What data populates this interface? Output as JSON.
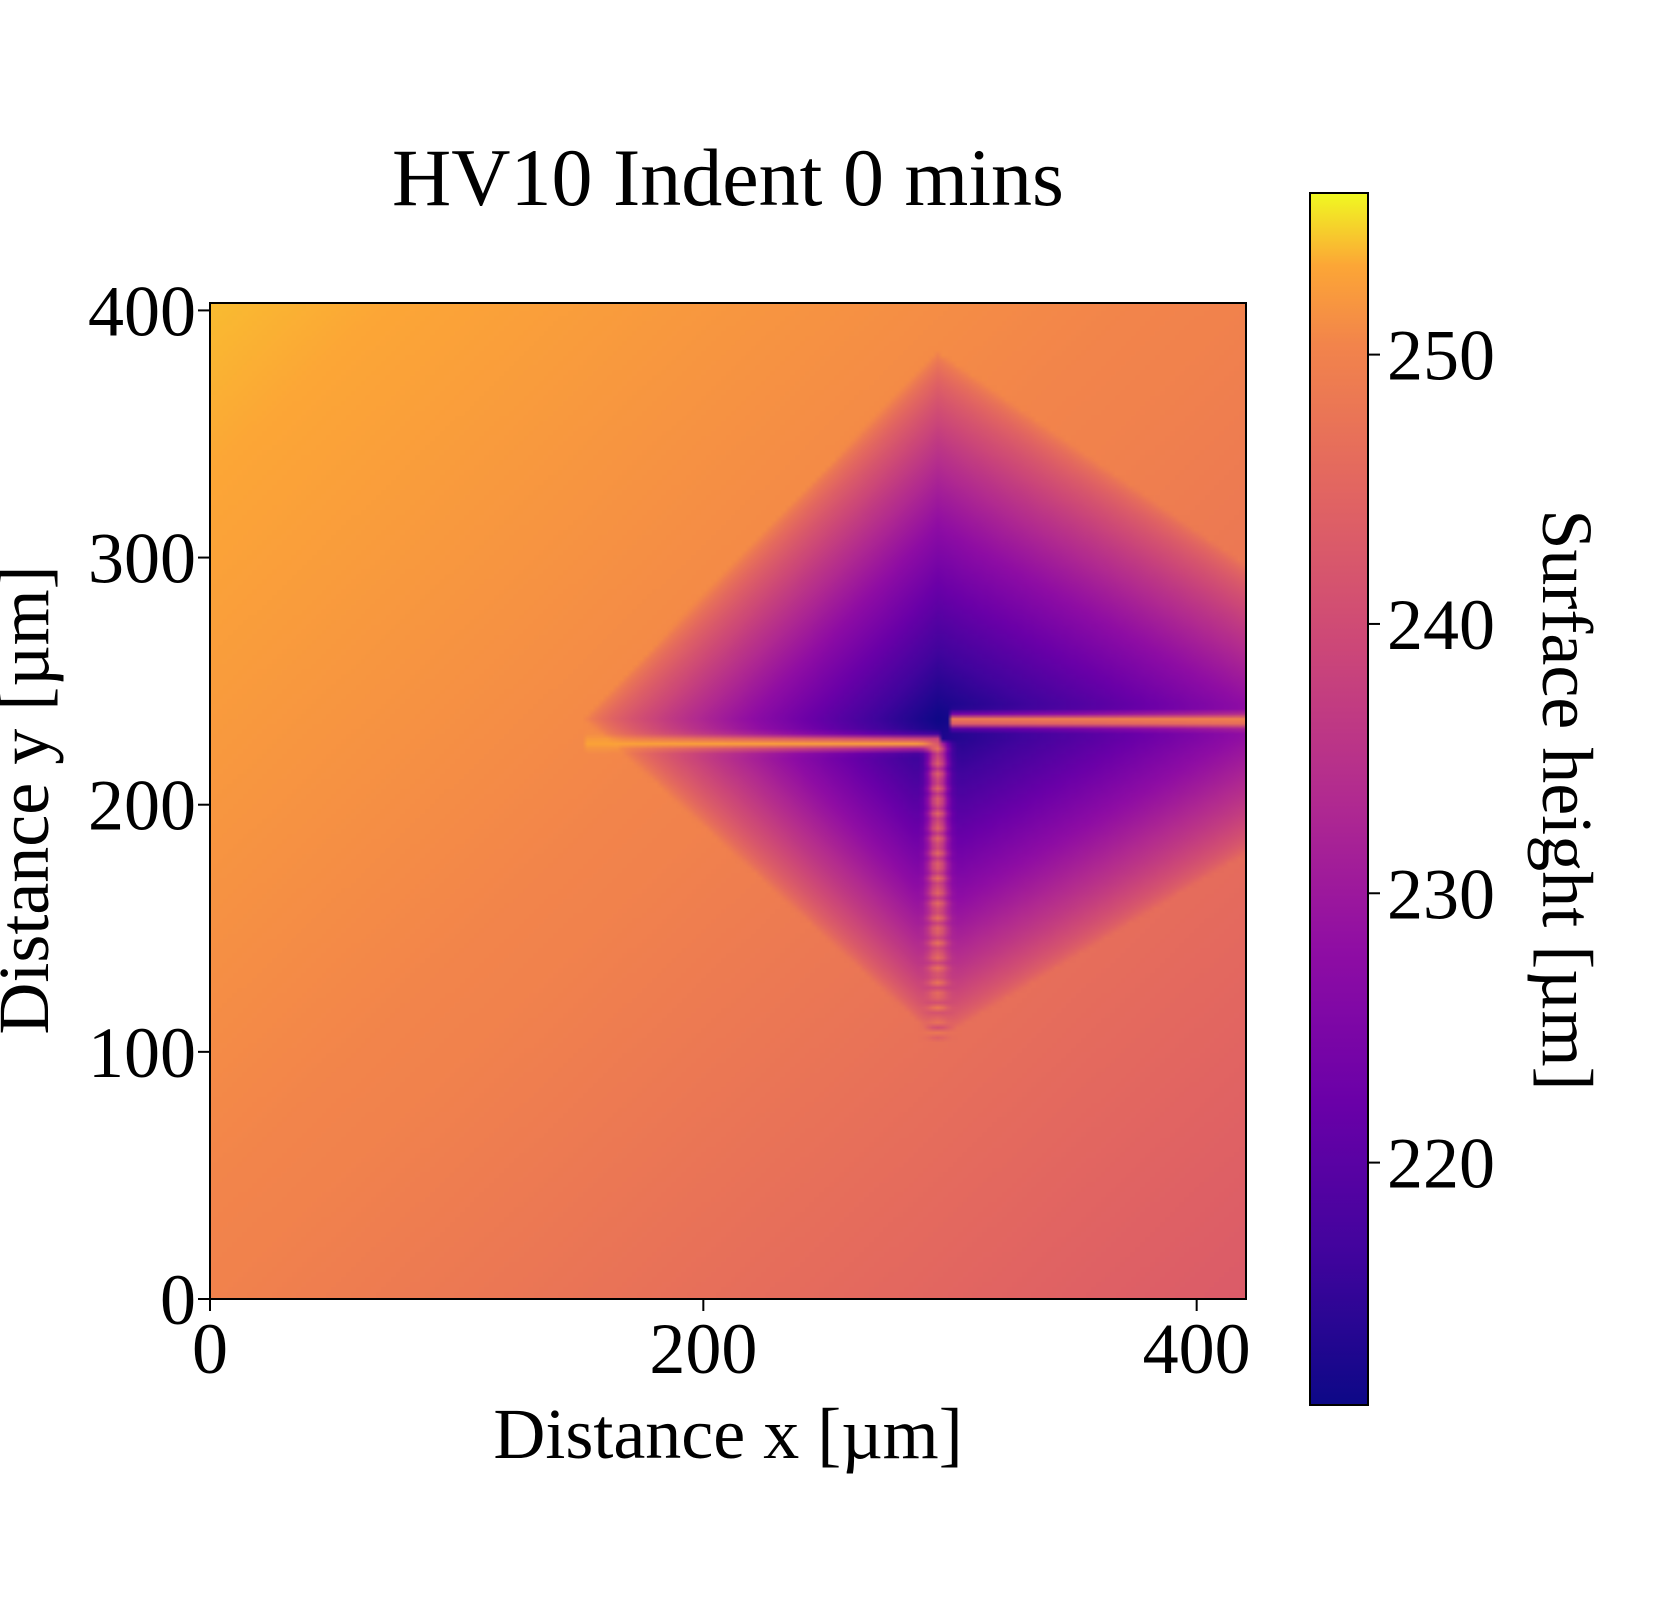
{
  "chart_data": {
    "type": "heatmap",
    "title": "HV10 Indent 0 mins",
    "xlabel": "Distance x [µm]",
    "ylabel": "Distance y [µm]",
    "xlim": [
      0,
      420
    ],
    "ylim": [
      0,
      403
    ],
    "xticks": [
      0,
      200,
      400
    ],
    "yticks": [
      0,
      100,
      200,
      300,
      400
    ],
    "grid": false,
    "colormap": "plasma",
    "colorbar": {
      "label": "Surface height [µm]",
      "range": [
        211,
        256
      ],
      "ticks": [
        220,
        230,
        240,
        250
      ]
    },
    "features": {
      "background_height_um": {
        "top_left": 254,
        "center": 250,
        "bottom_right": 243
      },
      "indent": {
        "shape": "diamond",
        "center_x": 295,
        "center_y": 235,
        "top_y": 383,
        "bottom_y": 105,
        "left_x": 152,
        "right_x": 420,
        "deepest_height_um": 212
      },
      "ridges": [
        {
          "from_x": 152,
          "to_x": 295,
          "y": 225,
          "height_um": 253
        },
        {
          "from_x": 300,
          "to_x": 420,
          "y": 234,
          "height_um": 252
        },
        {
          "from_x": 295,
          "to_y": 105,
          "from_y": 225,
          "x": 295,
          "height_um": 250
        }
      ]
    }
  }
}
